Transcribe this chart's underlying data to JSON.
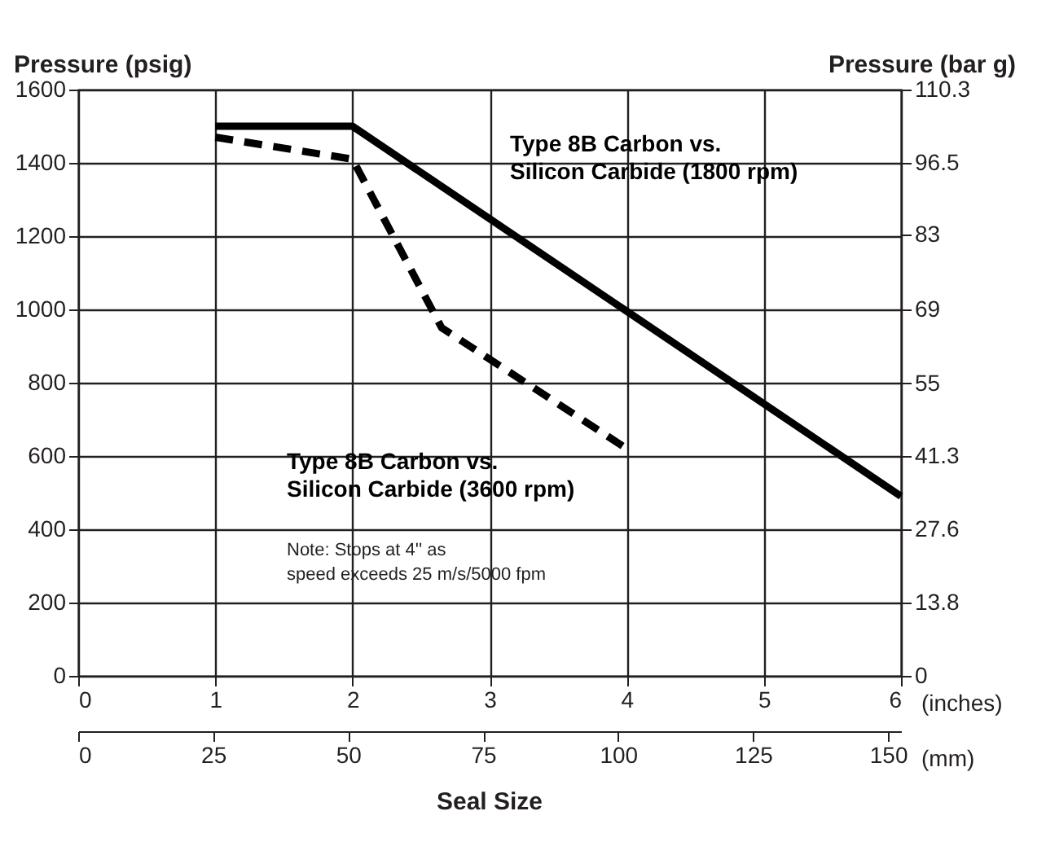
{
  "chart_data": {
    "type": "line",
    "xlabel": "(inches)",
    "ylabel": "Pressure (psig)",
    "y2label": "Pressure (bar g)",
    "x2label": "(mm)",
    "xlim": [
      0,
      6
    ],
    "xticks": [
      0,
      1,
      2,
      3,
      4,
      5,
      6
    ],
    "x2lim": [
      0,
      152.4
    ],
    "x2ticks": [
      0,
      25,
      50,
      75,
      100,
      125,
      150
    ],
    "ylim": [
      0,
      1600
    ],
    "yticks": [
      0,
      200,
      400,
      600,
      800,
      1000,
      1200,
      1400,
      1600
    ],
    "y2lim": [
      0,
      110.3
    ],
    "y2ticks": [
      0,
      13.8,
      27.6,
      41.3,
      55,
      69,
      83,
      96.5,
      110.3
    ],
    "grid": true,
    "series": [
      {
        "name": "Type 8B Carbon vs. Silicon Carbide (1800 rpm)",
        "color": "#000000",
        "line_style": "solid",
        "x": [
          1,
          2,
          6
        ],
        "values": [
          1500,
          1500,
          490
        ]
      },
      {
        "name": "Type 8B Carbon vs. Silicon Carbide (3600 rpm)",
        "color": "#000000",
        "line_style": "dashed",
        "x": [
          1,
          2,
          2.65,
          4
        ],
        "values": [
          1470,
          1410,
          950,
          620
        ]
      }
    ],
    "annotations": [
      "Note: Stops at 4'' as speed exceeds 25 m/s/5000 fpm",
      "Seal Size"
    ]
  }
}
